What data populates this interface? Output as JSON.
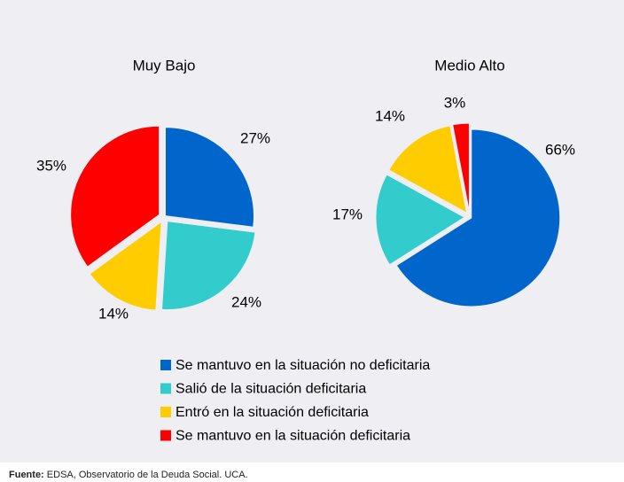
{
  "chart_data": [
    {
      "type": "pie",
      "title": "Muy Bajo",
      "categories": [
        "Se mantuvo en la situación no deficitaria",
        "Salió de la situación deficitaria",
        "Entró en la situación deficitaria",
        "Se mantuvo en la situación deficitaria"
      ],
      "values": [
        27,
        24,
        14,
        35
      ],
      "value_labels": [
        "27%",
        "24%",
        "14%",
        "35%"
      ],
      "colors": [
        "#0066cc",
        "#33cccc",
        "#ffcc00",
        "#ff0000"
      ]
    },
    {
      "type": "pie",
      "title": "Medio Alto",
      "categories": [
        "Se mantuvo en la situación no deficitaria",
        "Salió de la situación deficitaria",
        "Entró en la situación deficitaria",
        "Se mantuvo en la situación deficitaria"
      ],
      "values": [
        66,
        17,
        14,
        3
      ],
      "value_labels": [
        "66%",
        "17%",
        "14%",
        "3%"
      ],
      "colors": [
        "#0066cc",
        "#33cccc",
        "#ffcc00",
        "#ff0000"
      ]
    }
  ],
  "source": {
    "label": "Fuente:",
    "text": "EDSA, Observatorio de la Deuda Social. UCA."
  }
}
